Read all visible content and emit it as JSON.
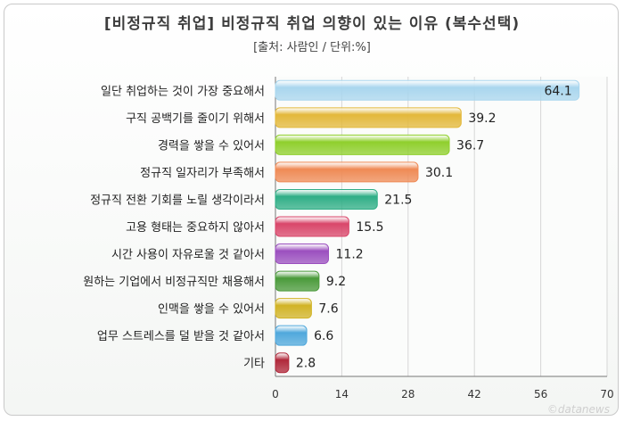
{
  "chart_data": {
    "type": "bar",
    "orientation": "horizontal",
    "title": "[비정규직 취업] 비정규직 취업 의향이 있는 이유 (복수선택)",
    "subtitle": "[출처: 사람인 / 단위:%]",
    "categories": [
      "일단 취업하는 것이 가장 중요해서",
      "구직 공백기를 줄이기 위해서",
      "경력을 쌓을 수 있어서",
      "정규직 일자리가 부족해서",
      "정규직 전환 기회를 노릴 생각이라서",
      "고용 형태는 중요하지 않아서",
      "시간 사용이 자유로울 것 같아서",
      "원하는 기업에서 비정규직만 채용해서",
      "인맥을 쌓을 수 있어서",
      "업무 스트레스를 덜 받을 것 같아서",
      "기타"
    ],
    "values": [
      64.1,
      39.2,
      36.7,
      30.1,
      21.5,
      15.5,
      11.2,
      9.2,
      7.6,
      6.6,
      2.8
    ],
    "value_labels": [
      "64.1",
      "39.2",
      "36.7",
      "30.1",
      "21.5",
      "15.5",
      "11.2",
      "9.2",
      "7.6",
      "6.6",
      "2.8"
    ],
    "xlim": [
      0,
      70
    ],
    "xticks": [
      0,
      14,
      28,
      42,
      56,
      70
    ],
    "tick_labels": [
      "0",
      "14",
      "28",
      "42",
      "56",
      "70"
    ],
    "grid": "vertical",
    "colors": [
      "#a9d6ee",
      "#e3b83a",
      "#8fcf2c",
      "#ef8a55",
      "#2fae86",
      "#d9466a",
      "#9b4fbf",
      "#4a9a3a",
      "#d1b325",
      "#4fa8dc",
      "#b0283a"
    ]
  },
  "watermark": "©datanews"
}
